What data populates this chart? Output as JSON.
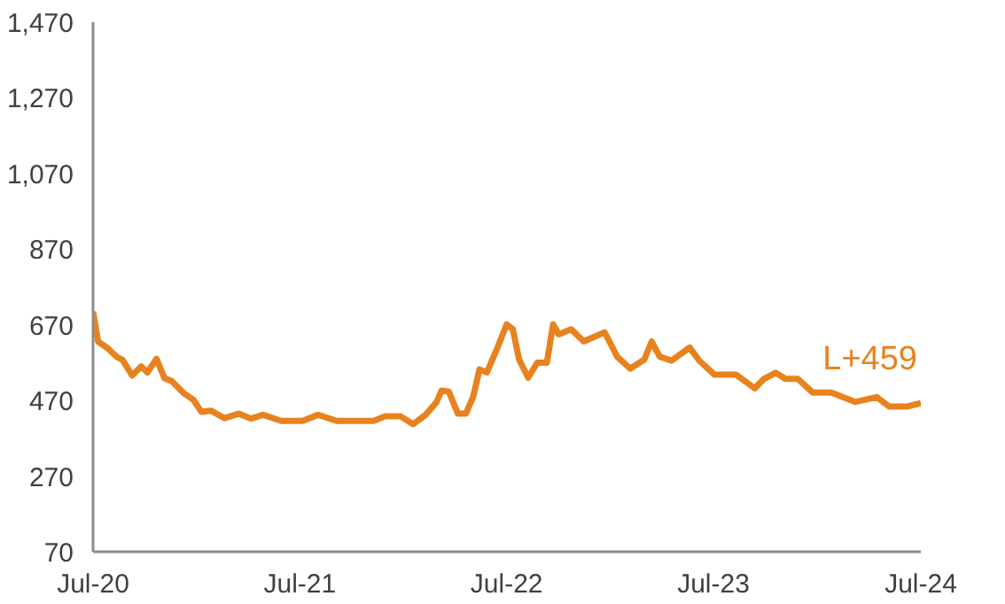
{
  "chart_data": {
    "type": "line",
    "color": "#e8821e",
    "x": [
      "2020-07-01",
      "2020-07-10",
      "2020-07-26",
      "2020-08-12",
      "2020-08-22",
      "2020-09-08",
      "2020-09-24",
      "2020-10-05",
      "2020-10-21",
      "2020-11-04",
      "2020-11-17",
      "2020-12-09",
      "2020-12-25",
      "2021-01-08",
      "2021-01-25",
      "2021-02-18",
      "2021-03-15",
      "2021-04-06",
      "2021-04-27",
      "2021-05-29",
      "2021-07-06",
      "2021-08-02",
      "2021-09-04",
      "2021-11-08",
      "2021-11-29",
      "2021-12-26",
      "2022-01-17",
      "2022-02-08",
      "2022-02-27",
      "2022-03-08",
      "2022-03-21",
      "2022-04-06",
      "2022-04-20",
      "2022-05-03",
      "2022-05-14",
      "2022-05-27",
      "2022-06-15",
      "2022-07-01",
      "2022-07-12",
      "2022-07-23",
      "2022-08-08",
      "2022-08-24",
      "2022-09-10",
      "2022-09-21",
      "2022-10-01",
      "2022-10-23",
      "2022-11-14",
      "2022-12-21",
      "2023-01-12",
      "2023-02-04",
      "2023-03-01",
      "2023-03-14",
      "2023-03-28",
      "2023-04-18",
      "2023-05-20",
      "2023-06-06",
      "2023-07-03",
      "2023-08-10",
      "2023-09-12",
      "2023-09-28",
      "2023-10-19",
      "2023-11-05",
      "2023-11-27",
      "2023-12-23",
      "2024-01-25",
      "2024-03-07",
      "2024-04-14",
      "2024-05-06",
      "2024-06-08",
      "2024-07-01"
    ],
    "values": [
      705,
      625,
      609,
      585,
      577,
      536,
      560,
      544,
      580,
      529,
      521,
      488,
      472,
      440,
      443,
      423,
      435,
      422,
      432,
      416,
      416,
      432,
      416,
      416,
      428,
      428,
      407,
      432,
      465,
      496,
      493,
      435,
      435,
      480,
      552,
      544,
      610,
      671,
      658,
      578,
      530,
      570,
      570,
      671,
      645,
      658,
      626,
      650,
      586,
      554,
      578,
      626,
      586,
      575,
      610,
      575,
      538,
      538,
      502,
      527,
      543,
      527,
      527,
      491,
      491,
      466,
      479,
      454,
      454,
      463
    ],
    "xlim": [
      "2020-07-01",
      "2024-07-01"
    ],
    "xticks": [
      {
        "value": "2020-07-01",
        "label": "Jul-20"
      },
      {
        "value": "2021-07-01",
        "label": "Jul-21"
      },
      {
        "value": "2022-07-01",
        "label": "Jul-22"
      },
      {
        "value": "2023-07-01",
        "label": "Jul-23"
      },
      {
        "value": "2024-07-01",
        "label": "Jul-24"
      }
    ],
    "ylim": [
      70,
      1470
    ],
    "yticks": [
      {
        "value": 70,
        "label": "70"
      },
      {
        "value": 270,
        "label": "270"
      },
      {
        "value": 470,
        "label": "470"
      },
      {
        "value": 670,
        "label": "670"
      },
      {
        "value": 870,
        "label": "870"
      },
      {
        "value": 1070,
        "label": "1,070"
      },
      {
        "value": 1270,
        "label": "1,270"
      },
      {
        "value": 1470,
        "label": "1,470"
      }
    ],
    "annotations": [
      {
        "text": "L+459",
        "x": "2024-07-01",
        "y": 463
      }
    ],
    "grid": false,
    "marker": "none",
    "line_style": "solid"
  }
}
